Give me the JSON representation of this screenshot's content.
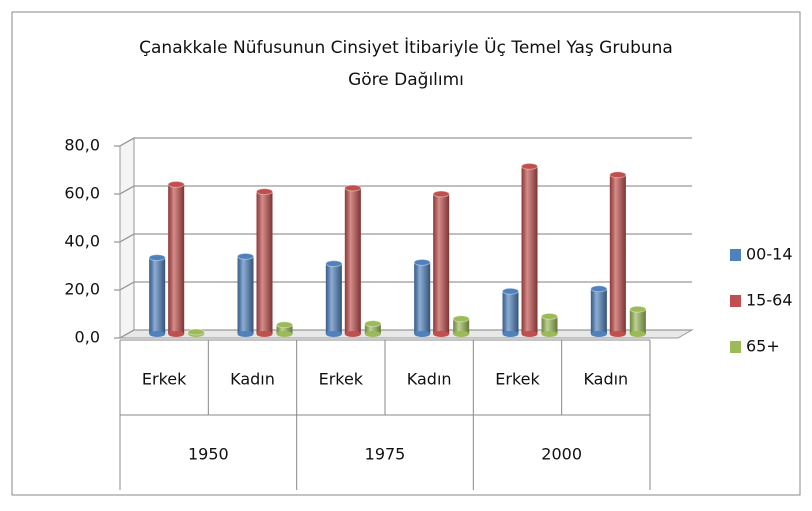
{
  "chart_data": {
    "type": "bar3d",
    "title": [
      "Çanakkale Nüfusunun Cinsiyet İtibariyle Üç Temel Yaş Grubuna",
      "Göre Dağılımı"
    ],
    "categories": [
      "Erkek",
      "Kadın",
      "Erkek",
      "Kadın",
      "Erkek",
      "Kadın"
    ],
    "category_groups": [
      "1950",
      "1975",
      "2000"
    ],
    "series": [
      {
        "name": "00-14",
        "color": "#4f81bd",
        "values": [
          33.5,
          34,
          31,
          31.5,
          19.5,
          20.5
        ]
      },
      {
        "name": "15-64",
        "color": "#c0504d",
        "values": [
          64,
          61,
          62.5,
          60,
          71.5,
          68
        ]
      },
      {
        "name": "65+",
        "color": "#9bbb59",
        "values": [
          2.5,
          5.5,
          6,
          8,
          9,
          12
        ]
      }
    ],
    "ylim": [
      0,
      80
    ],
    "yticks": [
      {
        "value": 0,
        "label": "0,0"
      },
      {
        "value": 20,
        "label": "20,0"
      },
      {
        "value": 40,
        "label": "40,0"
      },
      {
        "value": 60,
        "label": "60,0"
      },
      {
        "value": 80,
        "label": "80,0"
      }
    ],
    "grid": true,
    "legend": "right"
  }
}
